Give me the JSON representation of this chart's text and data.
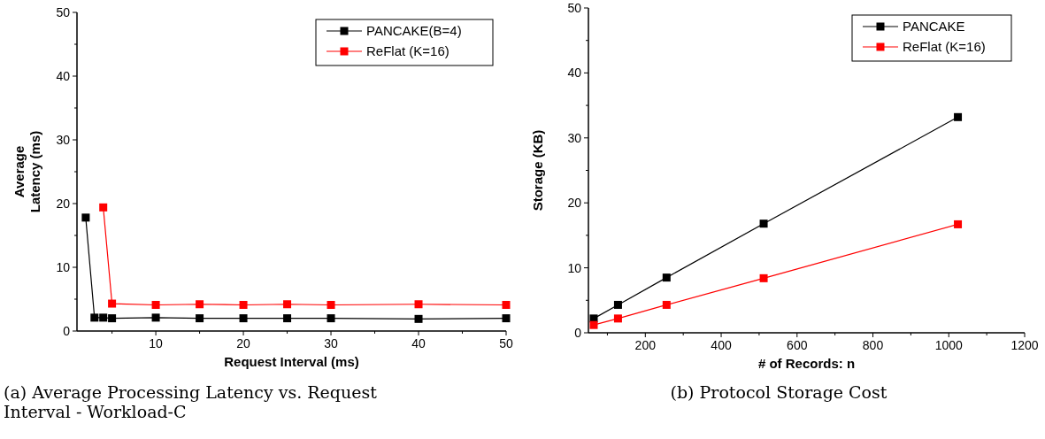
{
  "chart_data": [
    {
      "type": "line",
      "title": "(a) Average Processing Latency vs. Request Interval - Workload-C",
      "xlabel": "Request Interval (ms)",
      "ylabel": "Average Latency (ms)",
      "xlim": [
        1,
        50
      ],
      "xticks": [
        {
          "value": 5,
          "label": null
        },
        10,
        {
          "value": 15,
          "label": null
        },
        20,
        {
          "value": 25,
          "label": null
        },
        30,
        {
          "value": 35,
          "label": null
        },
        40,
        {
          "value": 45,
          "label": null
        },
        50
      ],
      "ylim": [
        0,
        50
      ],
      "yticks": [
        0,
        {
          "value": 5,
          "label": null
        },
        10,
        {
          "value": 15,
          "label": null
        },
        20,
        {
          "value": 25,
          "label": null
        },
        30,
        {
          "value": 35,
          "label": null
        },
        40,
        {
          "value": 45,
          "label": null
        },
        50
      ],
      "legend": "top right",
      "marker": "square",
      "grid": false,
      "series": [
        {
          "name": "PANCAKE(B=4)",
          "color": "#000000",
          "x": [
            2,
            3,
            4,
            5,
            10,
            15,
            20,
            25,
            30,
            40,
            50
          ],
          "values": [
            17.8,
            2.1,
            2.1,
            2.0,
            2.1,
            2.0,
            2.0,
            2.0,
            2.0,
            1.9,
            2.0
          ]
        },
        {
          "name": "ReFlat (K=16)",
          "color": "#ff0000",
          "x": [
            4,
            5,
            10,
            15,
            20,
            25,
            30,
            40,
            50
          ],
          "values": [
            19.4,
            4.3,
            4.1,
            4.2,
            4.1,
            4.2,
            4.1,
            4.2,
            4.1
          ]
        }
      ]
    },
    {
      "type": "line",
      "title": "(b) Protocol Storage Cost",
      "xlabel": "# of Records: n",
      "ylabel": "Storage (KB)",
      "xlim": [
        50,
        1200
      ],
      "xticks": [
        {
          "value": 100,
          "label": null
        },
        200,
        {
          "value": 300,
          "label": null
        },
        400,
        {
          "value": 500,
          "label": null
        },
        600,
        {
          "value": 700,
          "label": null
        },
        800,
        {
          "value": 900,
          "label": null
        },
        1000,
        {
          "value": 1100,
          "label": null
        },
        1200
      ],
      "ylim": [
        0,
        50
      ],
      "yticks": [
        0,
        {
          "value": 5,
          "label": null
        },
        10,
        {
          "value": 15,
          "label": null
        },
        20,
        {
          "value": 25,
          "label": null
        },
        30,
        {
          "value": 35,
          "label": null
        },
        40,
        {
          "value": 45,
          "label": null
        },
        50
      ],
      "legend": "top right",
      "marker": "square",
      "grid": false,
      "series": [
        {
          "name": "PANCAKE",
          "color": "#000000",
          "x": [
            64,
            128,
            256,
            512,
            1024
          ],
          "values": [
            2.2,
            4.3,
            8.5,
            16.8,
            33.2
          ]
        },
        {
          "name": "ReFlat (K=16)",
          "color": "#ff0000",
          "x": [
            64,
            128,
            256,
            512,
            1024
          ],
          "values": [
            1.2,
            2.2,
            4.3,
            8.4,
            16.7
          ]
        }
      ]
    }
  ]
}
